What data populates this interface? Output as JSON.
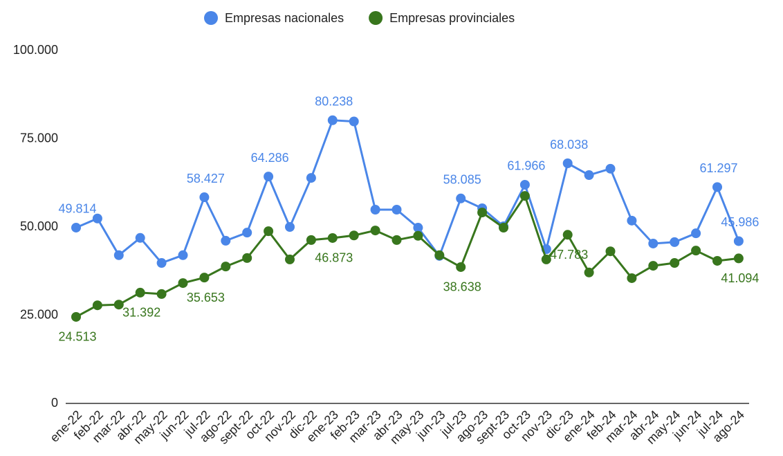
{
  "chart_data": {
    "type": "line",
    "categories": [
      "ene-22",
      "feb-22",
      "mar-22",
      "abr-22",
      "may-22",
      "jun-22",
      "jul-22",
      "ago-22",
      "sept-22",
      "oct-22",
      "nov-22",
      "dic-22",
      "ene-23",
      "feb-23",
      "mar-23",
      "abr-23",
      "may-23",
      "jun-23",
      "jul-23",
      "ago-23",
      "sept-23",
      "oct-23",
      "nov-23",
      "dic-23",
      "ene-24",
      "feb-24",
      "mar-24",
      "abr-24",
      "may-24",
      "jun-24",
      "jul-24",
      "ago-24"
    ],
    "series": [
      {
        "name": "Empresas nacionales",
        "color": "#4a86e8",
        "values": [
          49814,
          52400,
          42000,
          46900,
          39800,
          42000,
          58427,
          46100,
          48400,
          64286,
          50000,
          63900,
          80238,
          79900,
          54900,
          54900,
          49800,
          41800,
          58085,
          55300,
          50200,
          61966,
          43700,
          68038,
          64700,
          66500,
          51800,
          45300,
          45700,
          48200,
          61297,
          45986
        ],
        "value_labels": [
          "49.814",
          null,
          null,
          null,
          null,
          null,
          "58.427",
          null,
          null,
          "64.286",
          null,
          null,
          "80.238",
          null,
          null,
          null,
          null,
          null,
          "58.085",
          null,
          null,
          "61.966",
          null,
          "68.038",
          null,
          null,
          null,
          null,
          null,
          null,
          "61.297",
          "45.986"
        ]
      },
      {
        "name": "Empresas provinciales",
        "color": "#38761d",
        "values": [
          24513,
          27800,
          28000,
          31392,
          31000,
          34100,
          35653,
          38800,
          41200,
          48800,
          40800,
          46300,
          46873,
          47600,
          49000,
          46300,
          47500,
          42000,
          38638,
          54100,
          49800,
          58800,
          40800,
          47783,
          37100,
          43100,
          35500,
          39000,
          39800,
          43300,
          40400,
          41094
        ],
        "value_labels": [
          "24.513",
          null,
          null,
          "31.392",
          null,
          null,
          "35.653",
          null,
          null,
          null,
          null,
          null,
          "46.873",
          null,
          null,
          null,
          null,
          null,
          "38.638",
          null,
          null,
          null,
          null,
          "47.783",
          null,
          null,
          null,
          null,
          null,
          null,
          null,
          "41.094"
        ]
      }
    ],
    "ylim": [
      0,
      100000
    ],
    "yticks": [
      0,
      {
        "value": 25000,
        "label": "25.000"
      },
      {
        "value": 50000,
        "label": "50.000"
      },
      {
        "value": 75000,
        "label": "75.000"
      },
      {
        "value": 100000,
        "label": "100.000"
      }
    ],
    "grid": false
  }
}
